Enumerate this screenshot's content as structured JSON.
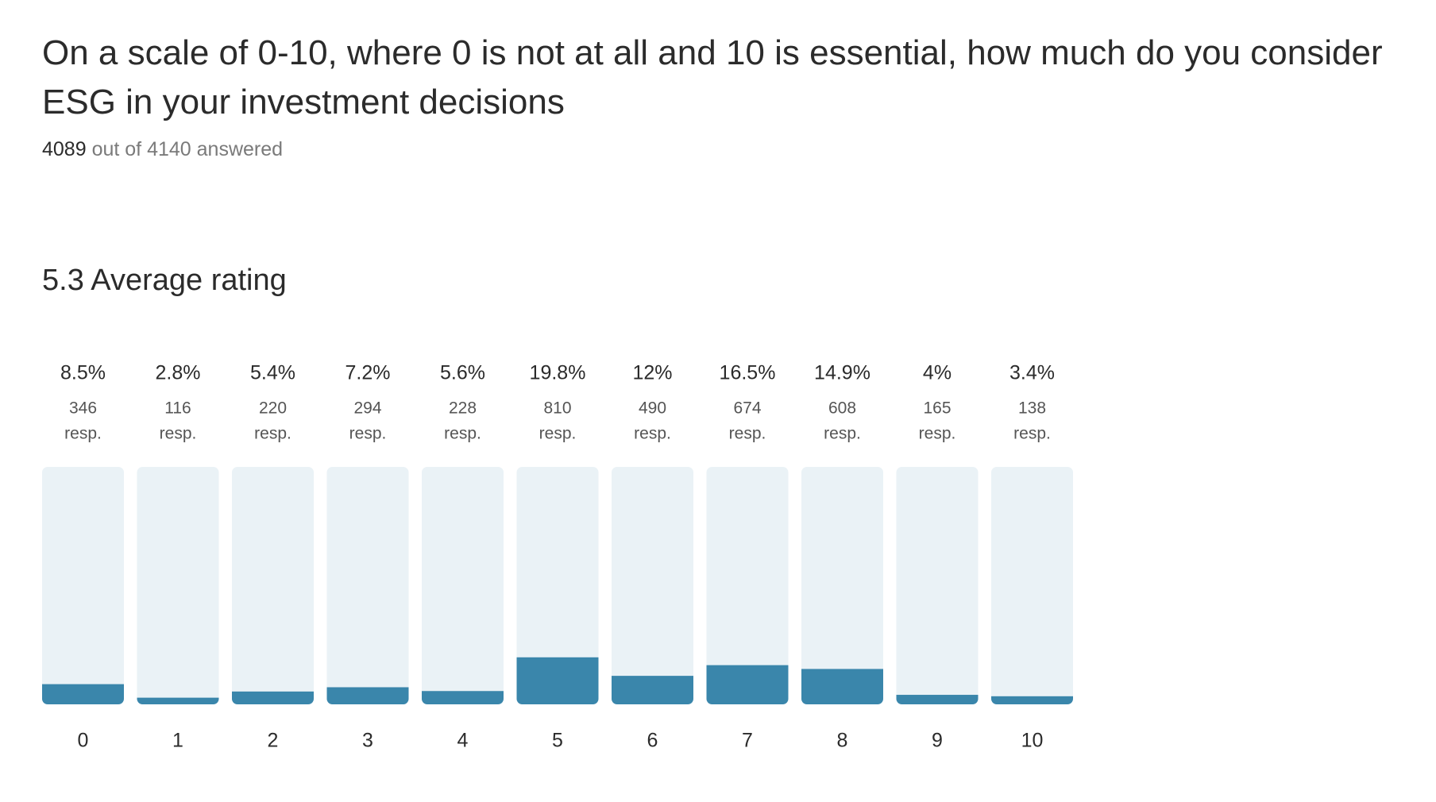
{
  "header": {
    "title": "On a scale of 0-10, where 0 is not at all and 10 is essential, how much do you consider ESG in your investment decisions",
    "answered": 4089,
    "answered_text": "out of 4140 answered"
  },
  "summary": {
    "average": 5.3,
    "label": "Average rating"
  },
  "chart_data": {
    "type": "bar",
    "categories": [
      "0",
      "1",
      "2",
      "3",
      "4",
      "5",
      "6",
      "7",
      "8",
      "9",
      "10"
    ],
    "values": [
      8.5,
      2.8,
      5.4,
      7.2,
      5.6,
      19.8,
      12,
      16.5,
      14.9,
      4,
      3.4
    ],
    "value_labels": [
      "8.5%",
      "2.8%",
      "5.4%",
      "7.2%",
      "5.6%",
      "19.8%",
      "12%",
      "16.5%",
      "14.9%",
      "4%",
      "3.4%"
    ],
    "responses": [
      346,
      116,
      220,
      294,
      228,
      810,
      490,
      674,
      608,
      165,
      138
    ],
    "response_unit": "resp.",
    "ylim": [
      0,
      100
    ],
    "color": "#3a86ab",
    "track_color": "#eaf2f6"
  }
}
